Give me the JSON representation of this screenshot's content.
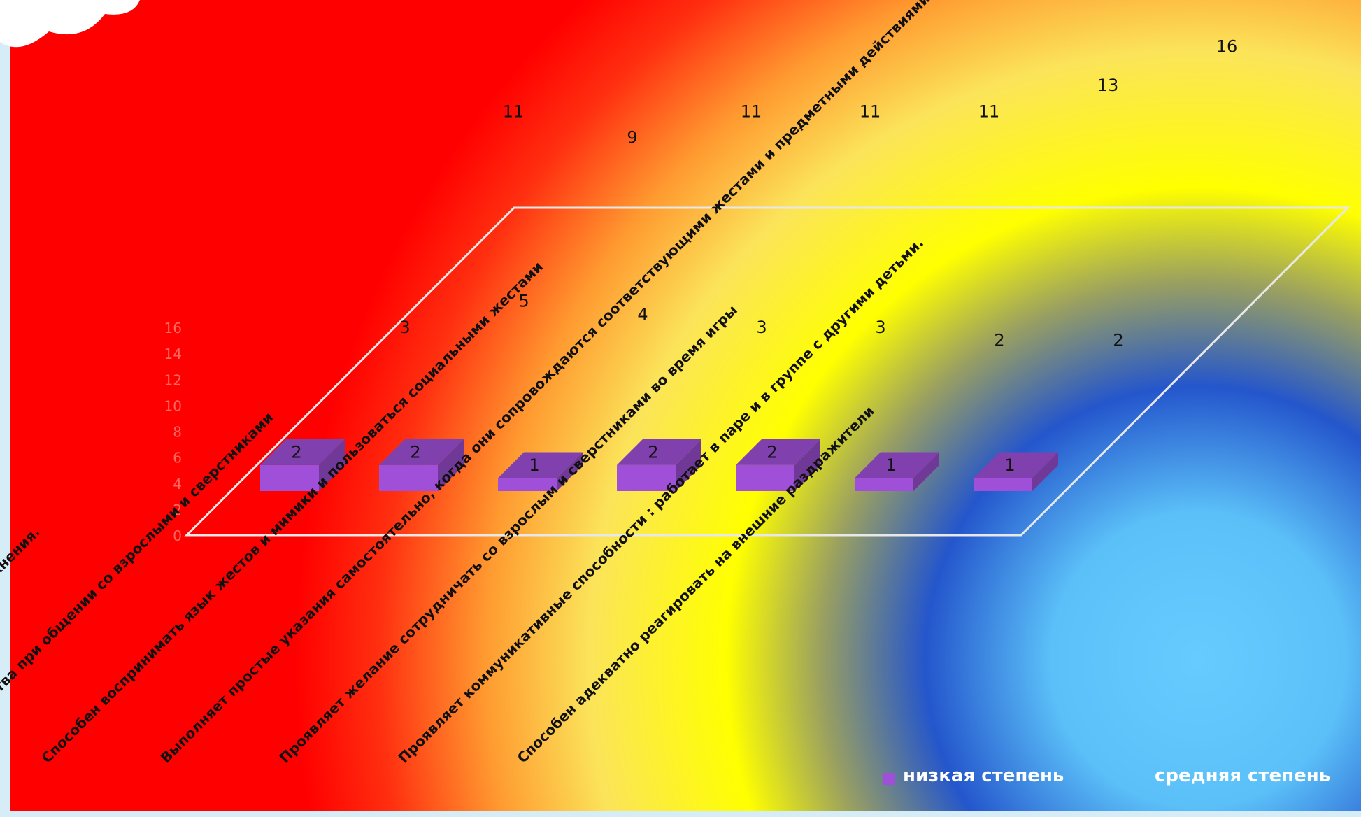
{
  "chart_data": {
    "type": "bar3d",
    "categories": [
      "о – сопряженно выполнять упражнения.",
      "ражать чувства при общении со взрослыми и сверстниками",
      "Способен воспринимать язык жестов и мимики и пользоваться социальными жестами",
      "Выполняет простые указания самостоятельно, когда они сопровождаются соответствующими жестами и предметными действиями",
      "Проявляет желание сотрудничать со взрослым и сверстниками во время игры",
      "Проявляет коммуникативные способности : работает в паре и в группе с другими детьми.",
      "Способен адекватно реагировать на внешние раздражители"
    ],
    "series": [
      {
        "name": "низкая степень",
        "color": "#a050d8",
        "values": [
          2,
          2,
          1,
          2,
          2,
          1,
          1
        ]
      },
      {
        "name": "средняя степень",
        "values": [
          3,
          5,
          4,
          3,
          3,
          2,
          2
        ]
      },
      {
        "values": [
          11,
          9,
          11,
          11,
          11,
          13,
          16
        ]
      }
    ],
    "ylim": [
      0,
      16
    ],
    "yticks": [
      0,
      2,
      4,
      6,
      8,
      10,
      12,
      14,
      16
    ]
  }
}
